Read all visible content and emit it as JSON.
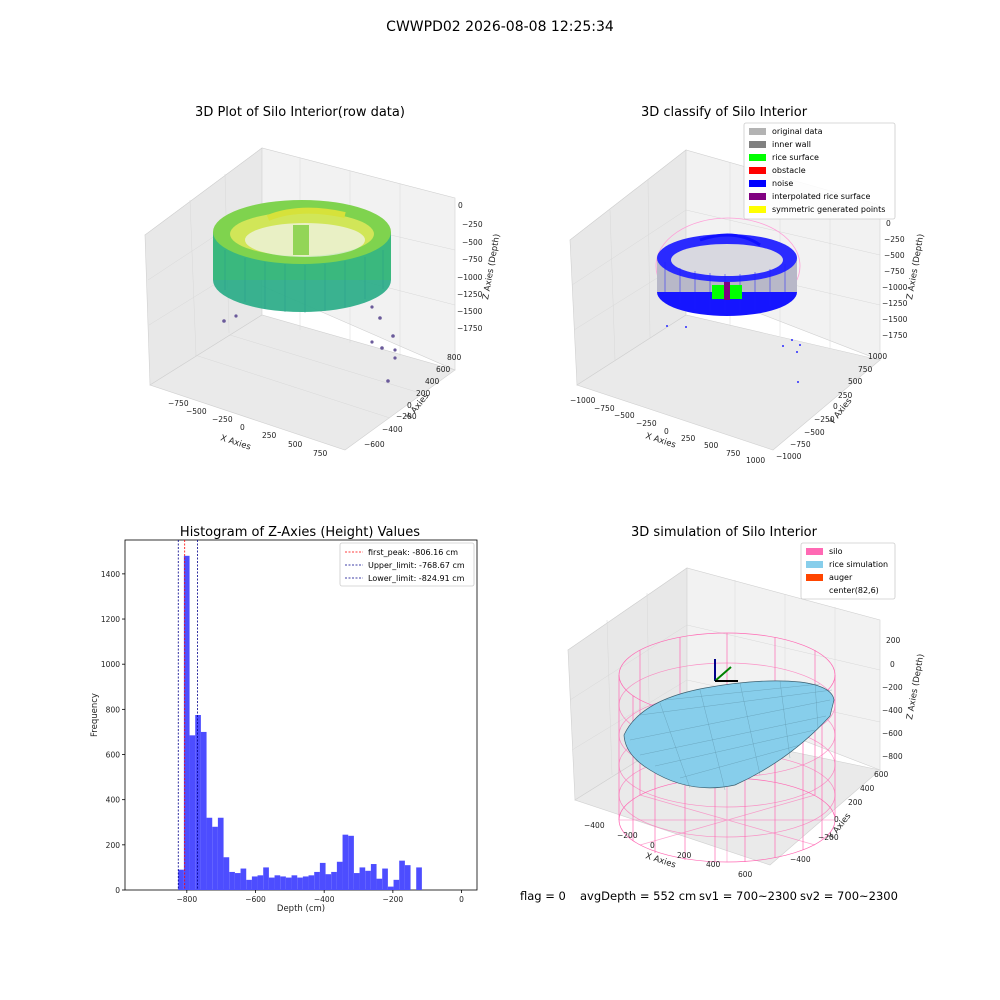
{
  "suptitle": "CWWPD02 2026-08-08 12:25:34",
  "footer": {
    "flag": "flag = 0",
    "avg": "avgDepth = 552 cm",
    "sv1": "sv1 = 700~2300",
    "sv2": "sv2 = 700~2300"
  },
  "colors": {
    "hist_bar": "#4d4dff",
    "first_peak": "#ff0000",
    "limit_line": "#00008b",
    "silo": "#ff69b4",
    "rice_simulation": "#87ceeb",
    "auger": "#ff4500",
    "pane_gray": "#f2f2f2",
    "noise": "#0000ff",
    "original": "#b3b3b3"
  },
  "panel1": {
    "title": "3D Plot of Silo Interior(row data)",
    "x_label": "X Axies",
    "y_label": "Y Axies",
    "z_label": "Z Axies (Depth)",
    "x_ticks": [
      "−750",
      "−500",
      "−250",
      "0",
      "250",
      "500",
      "750"
    ],
    "y_ticks": [
      "−600",
      "−400",
      "−200",
      "0",
      "200",
      "400",
      "600",
      "800"
    ],
    "z_ticks": [
      "0",
      "−250",
      "−500",
      "−750",
      "−1000",
      "−1250",
      "−1500",
      "−1750"
    ]
  },
  "panel2": {
    "title": "3D classify of Silo Interior",
    "x_label": "X Axies",
    "y_label": "Y Axies",
    "z_label": "Z Axies (Depth)",
    "x_ticks": [
      "−1000",
      "−750",
      "−500",
      "−250",
      "0",
      "250",
      "500",
      "750",
      "1000"
    ],
    "y_ticks": [
      "−1000",
      "−750",
      "−500",
      "−250",
      "0",
      "250",
      "500",
      "750",
      "1000"
    ],
    "z_ticks": [
      "0",
      "−250",
      "−500",
      "−750",
      "−1000",
      "−1250",
      "−1500",
      "−1750"
    ],
    "legend": [
      {
        "label": "original data",
        "color": "#b3b3b3"
      },
      {
        "label": "inner wall",
        "color": "#808080"
      },
      {
        "label": "rice surface",
        "color": "#00ff00"
      },
      {
        "label": "obstacle",
        "color": "#ff0000"
      },
      {
        "label": "noise",
        "color": "#0000ff"
      },
      {
        "label": "interpolated rice surface",
        "color": "#800080"
      },
      {
        "label": "symmetric generated points",
        "color": "#ffff00"
      }
    ]
  },
  "panel4": {
    "title": "3D simulation of Silo Interior",
    "x_label": "X Axies",
    "y_label": "Y Axies",
    "z_label": "Z Axies (Depth)",
    "x_ticks": [
      "−400",
      "−200",
      "0",
      "200",
      "400",
      "600"
    ],
    "y_ticks": [
      "−400",
      "−200",
      "0",
      "200",
      "400",
      "600"
    ],
    "z_ticks": [
      "200",
      "0",
      "−200",
      "−400",
      "−600",
      "−800"
    ],
    "legend": [
      {
        "label": "silo",
        "color": "#ff69b4"
      },
      {
        "label": "rice simulation",
        "color": "#87ceeb"
      },
      {
        "label": "auger",
        "color": "#ff4500"
      },
      {
        "label": "center(82,6)",
        "color": ""
      }
    ]
  },
  "chart_data": [
    {
      "type": "bar",
      "title": "Histogram of Z-Axies (Height) Values",
      "xlabel": "Depth (cm)",
      "ylabel": "Frequency",
      "xlim": [
        -980,
        45
      ],
      "ylim": [
        0,
        1550
      ],
      "x_ticks": [
        -800,
        -600,
        -400,
        -200,
        0
      ],
      "y_ticks": [
        0,
        200,
        400,
        600,
        800,
        1000,
        1200,
        1400
      ],
      "bin_width": 16.5,
      "bin_edges_start": -825,
      "values": [
        90,
        1480,
        685,
        775,
        700,
        320,
        280,
        320,
        145,
        80,
        75,
        95,
        45,
        60,
        65,
        100,
        55,
        65,
        60,
        55,
        65,
        55,
        60,
        65,
        80,
        120,
        70,
        80,
        125,
        245,
        240,
        75,
        100,
        85,
        115,
        50,
        95,
        15,
        45,
        130,
        110,
        0,
        100
      ],
      "vlines": [
        {
          "label": "first_peak: -806.16 cm",
          "x": -806.16,
          "color": "#ff0000"
        },
        {
          "label": "Upper_limit: -768.67 cm",
          "x": -768.67,
          "color": "#00008b"
        },
        {
          "label": "Lower_limit: -824.91 cm",
          "x": -824.91,
          "color": "#00008b"
        }
      ],
      "legend_position": "top-right",
      "grid": false
    }
  ]
}
